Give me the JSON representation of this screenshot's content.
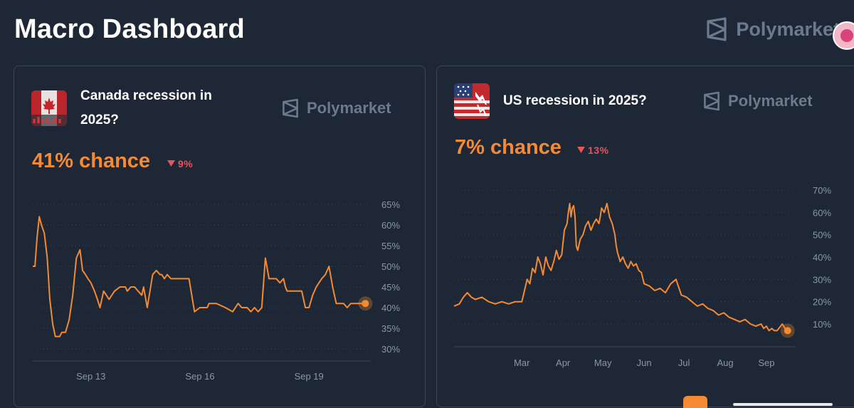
{
  "header": {
    "title": "Macro Dashboard",
    "brand": "Polymarket"
  },
  "colors": {
    "line": "#f58a32",
    "down": "#e8545a",
    "background": "#1d2735",
    "axis_text": "#8c97a6"
  },
  "cards": [
    {
      "title_lines": [
        "Canada recession in",
        "2025?"
      ],
      "brand": "Polymarket",
      "chance": "41% chance",
      "delta": "9%",
      "delta_direction": "down"
    },
    {
      "title_lines": [
        "US recession in 2025?"
      ],
      "brand": "Polymarket",
      "chance": "7% chance",
      "delta": "13%",
      "delta_direction": "down"
    }
  ],
  "chart_data": [
    {
      "type": "line",
      "title": "Canada recession in 2025?",
      "y_unit": "%",
      "ylim": [
        30,
        65
      ],
      "y_ticks": [
        30,
        35,
        40,
        45,
        50,
        55,
        60,
        65
      ],
      "y_tick_labels": [
        "30%",
        "35%",
        "40%",
        "45%",
        "50%",
        "55%",
        "60%",
        "65%"
      ],
      "x_tick_labels": [
        "Sep 13",
        "Sep 16",
        "Sep 19"
      ],
      "x_ticks": [
        1.6,
        4.6,
        7.6
      ],
      "xlim": [
        0,
        9.3
      ],
      "grid": true,
      "series": [
        {
          "x": [
            0,
            0.06,
            0.12,
            0.18,
            0.24,
            0.32,
            0.4,
            0.47,
            0.55,
            0.62,
            0.68,
            0.74,
            0.8,
            0.9,
            1.0,
            1.1,
            1.2,
            1.3,
            1.37,
            1.45,
            1.52,
            1.6,
            1.7,
            1.78,
            1.85,
            1.95,
            2.1,
            2.25,
            2.4,
            2.55,
            2.6,
            2.7,
            2.8,
            2.9,
            3.0,
            3.05,
            3.15,
            3.3,
            3.4,
            3.5,
            3.55,
            3.62,
            3.7,
            3.8,
            3.9,
            4.0,
            4.1,
            4.2,
            4.3,
            4.45,
            4.6,
            4.7,
            4.8,
            4.85,
            4.95,
            5.05,
            5.3,
            5.5,
            5.65,
            5.75,
            5.9,
            6.0,
            6.1,
            6.2,
            6.3,
            6.4,
            6.5,
            6.6,
            6.7,
            6.8,
            6.9,
            6.95,
            7.0,
            7.05,
            7.1,
            7.3,
            7.4,
            7.5,
            7.6,
            7.7,
            7.8,
            7.95,
            8.05,
            8.15,
            8.25,
            8.35,
            8.45,
            8.55,
            8.65,
            8.75,
            8.85,
            9.0,
            9.15
          ],
          "y": [
            50,
            50,
            57,
            62,
            60,
            58,
            52,
            42,
            36,
            33,
            33,
            33,
            34,
            34,
            37,
            43,
            52,
            54,
            49,
            48,
            47,
            46,
            44,
            42,
            40,
            44,
            42,
            44,
            45,
            45,
            44,
            45,
            45,
            44,
            43,
            45,
            40,
            48,
            49,
            48,
            48,
            47,
            48,
            47,
            47,
            47,
            47,
            47,
            47,
            39,
            40,
            40,
            40,
            41,
            41,
            41,
            40,
            39,
            41,
            40,
            40,
            39,
            40,
            39,
            40,
            52,
            47,
            47,
            47,
            46,
            47,
            45,
            44,
            44,
            44,
            44,
            44,
            40,
            40,
            43,
            45,
            47,
            48,
            50,
            45,
            41,
            41,
            41,
            40,
            41,
            41,
            41,
            41
          ]
        }
      ]
    },
    {
      "type": "line",
      "title": "US recession in 2025?",
      "y_unit": "%",
      "ylim": [
        0,
        70
      ],
      "y_ticks": [
        10,
        20,
        30,
        40,
        50,
        60,
        70
      ],
      "y_tick_labels": [
        "10%",
        "20%",
        "30%",
        "40%",
        "50%",
        "60%",
        "70%"
      ],
      "x_tick_labels": [
        "Mar",
        "Apr",
        "May",
        "Jun",
        "Jul",
        "Aug",
        "Sep"
      ],
      "x_ticks": [
        60,
        91,
        121,
        152,
        182,
        213,
        244
      ],
      "xlim": [
        9,
        266
      ],
      "grid": true,
      "series": [
        {
          "x": [
            9,
            13,
            16,
            19,
            22,
            25,
            30,
            35,
            40,
            45,
            50,
            55,
            60,
            62,
            64,
            66,
            68,
            70,
            72,
            74,
            76,
            78,
            80,
            82,
            84,
            86,
            88,
            90,
            92,
            94,
            95,
            96,
            97,
            98,
            99,
            100,
            101,
            102,
            104,
            106,
            108,
            110,
            112,
            114,
            116,
            118,
            119,
            120,
            122,
            124,
            126,
            128,
            130,
            131,
            132,
            133,
            134,
            136,
            138,
            140,
            142,
            144,
            146,
            148,
            150,
            152,
            156,
            160,
            164,
            168,
            172,
            176,
            180,
            184,
            188,
            192,
            196,
            200,
            204,
            208,
            212,
            216,
            220,
            224,
            228,
            232,
            236,
            240,
            242,
            244,
            246,
            248,
            250,
            252,
            256,
            258,
            260
          ],
          "y": [
            18,
            19,
            22,
            24,
            22,
            21,
            22,
            20,
            19,
            20,
            19,
            20,
            20,
            25,
            30,
            28,
            35,
            33,
            40,
            37,
            32,
            40,
            36,
            34,
            38,
            43,
            39,
            41,
            52,
            55,
            60,
            64,
            58,
            62,
            63,
            58,
            45,
            43,
            48,
            50,
            54,
            56,
            52,
            55,
            57,
            55,
            58,
            62,
            60,
            64,
            58,
            55,
            50,
            45,
            42,
            40,
            38,
            40,
            37,
            35,
            38,
            36,
            37,
            34,
            33,
            28,
            27,
            25,
            26,
            24,
            28,
            30,
            23,
            22,
            20,
            18,
            19,
            17,
            16,
            14,
            15,
            13,
            12,
            11,
            12,
            10,
            9,
            10,
            8,
            9,
            7,
            8,
            7,
            7,
            10,
            8,
            7
          ]
        }
      ]
    }
  ]
}
